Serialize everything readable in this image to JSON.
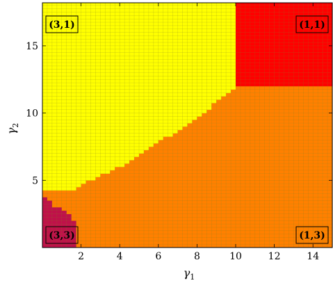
{
  "chart_data": {
    "type": "heatmap",
    "xlabel": "γ1",
    "ylabel": "γ2",
    "xlim": [
      0,
      15.0
    ],
    "ylim": [
      0,
      18.2
    ],
    "x_ticks": [
      2,
      4,
      6,
      8,
      10,
      12,
      14
    ],
    "y_ticks": [
      5,
      10,
      15
    ],
    "grid": true,
    "cell_step": 0.25,
    "colors": {
      "(3,3)": "#c0104a",
      "(3,1)": "#ffff00",
      "(1,1)": "#ff0000",
      "(1,3)": "#ff8000",
      "grid_line": "#808020",
      "frame": "#000000"
    },
    "regions": [
      {
        "label": "(3,1)",
        "corner": "top-left"
      },
      {
        "label": "(1,1)",
        "corner": "top-right"
      },
      {
        "label": "(3,3)",
        "corner": "bottom-left"
      },
      {
        "label": "(1,3)",
        "corner": "bottom-right"
      }
    ],
    "boundaries": {
      "regime_3_3": {
        "x": [
          0,
          0.5,
          0.75,
          1.0,
          1.25,
          1.5,
          1.75
        ],
        "y_top": [
          3.8,
          3.25,
          3.0,
          2.8,
          2.5,
          2.3,
          1.5
        ]
      },
      "yellow_orange": {
        "x": [
          1.75,
          2.0,
          3.0,
          4.0,
          5.0,
          6.0,
          7.0,
          8.0,
          9.0,
          10.0,
          10.5
        ],
        "y": [
          4.2,
          4.6,
          5.4,
          6.0,
          6.8,
          7.8,
          8.7,
          9.6,
          10.8,
          12.0,
          12.0
        ]
      },
      "red_x_min": 10.0,
      "red_y_min": 12.0
    }
  }
}
